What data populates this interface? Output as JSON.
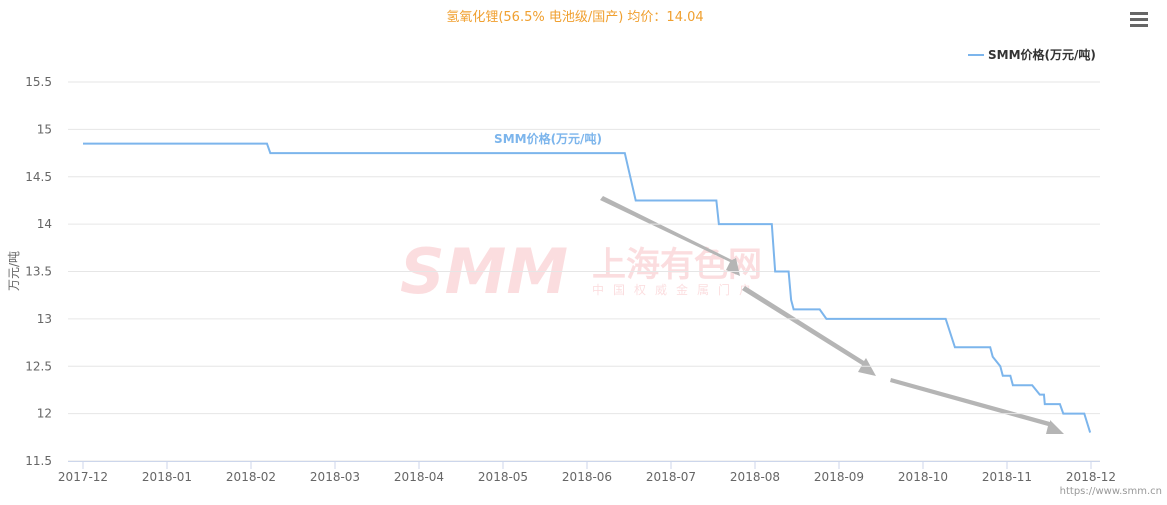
{
  "chart_data": {
    "type": "line",
    "title": "氢氧化锂(56.5% 电池级/国产) 均价：14.04",
    "y_label": "万元/吨",
    "watermark": {
      "logo": "SMM",
      "name": "上海有色网",
      "slogan": "中国权威金属门户"
    },
    "source": "https://www.smm.cn",
    "xlim": [
      0,
      12
    ],
    "xticks": [
      {
        "value": 0,
        "label": "2017-12"
      },
      {
        "value": 1,
        "label": "2018-01"
      },
      {
        "value": 2,
        "label": "2018-02"
      },
      {
        "value": 3,
        "label": "2018-03"
      },
      {
        "value": 4,
        "label": "2018-04"
      },
      {
        "value": 5,
        "label": "2018-05"
      },
      {
        "value": 6,
        "label": "2018-06"
      },
      {
        "value": 7,
        "label": "2018-07"
      },
      {
        "value": 8,
        "label": "2018-08"
      },
      {
        "value": 9,
        "label": "2018-09"
      },
      {
        "value": 10,
        "label": "2018-10"
      },
      {
        "value": 11,
        "label": "2018-11"
      },
      {
        "value": 12,
        "label": "2018-12"
      }
    ],
    "ylim": [
      11.5,
      15.5
    ],
    "yticks": [
      11.5,
      12,
      12.5,
      13,
      13.5,
      14,
      14.5,
      15,
      15.5
    ],
    "grid": true,
    "legend": "top-right",
    "x": [
      0,
      2.19,
      2.23,
      6.45,
      6.58,
      7.54,
      7.57,
      8.2,
      8.24,
      8.4,
      8.43,
      8.46,
      8.77,
      8.85,
      10.27,
      10.38,
      10.8,
      10.83,
      10.92,
      10.95,
      11.04,
      11.07,
      11.3,
      11.39,
      11.44,
      11.45,
      11.63,
      11.67,
      11.92,
      11.99
    ],
    "series": [
      {
        "name": "SMM价格(万元/吨)",
        "color": "#7cb5ec",
        "values": [
          14.85,
          14.85,
          14.75,
          14.75,
          14.25,
          14.25,
          14.0,
          14.0,
          13.5,
          13.5,
          13.2,
          13.1,
          13.1,
          13.0,
          13.0,
          12.7,
          12.7,
          12.6,
          12.5,
          12.4,
          12.4,
          12.3,
          12.3,
          12.2,
          12.2,
          12.1,
          12.1,
          12.0,
          12.0,
          11.8
        ]
      }
    ]
  }
}
